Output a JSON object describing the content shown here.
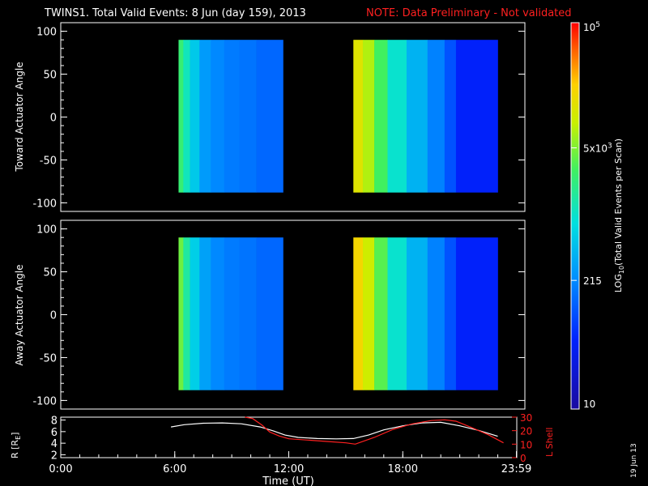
{
  "title": {
    "main": "TWINS1. Total Valid Events:  8 Jun (day 159), 2013",
    "note": "NOTE: Data Preliminary - Not validated"
  },
  "date_stamp": "19 Jun 13",
  "colors": {
    "background": "#000000",
    "axes": "#ffffff",
    "note_text": "#ff2020",
    "r_line": "#ffffff",
    "lshell_line": "#ff2020"
  },
  "chart_data": [
    {
      "type": "heatmap",
      "id": "toward",
      "ylabel": "Toward Actuator Angle",
      "xlim": [
        0,
        24
      ],
      "ylim": [
        -110,
        110
      ],
      "yticks": [
        100,
        50,
        0,
        -50,
        -100
      ],
      "ytick_labels": [
        "100",
        "50",
        "0",
        "-50",
        "-100"
      ],
      "value_units": "log10 events per scan",
      "blocks": [
        {
          "x_start": 6.2,
          "x_end": 11.7,
          "y_start": -88,
          "y_end": 90,
          "columns": [
            {
              "x0": 6.2,
              "x1": 6.45,
              "v": 0.6
            },
            {
              "x0": 6.45,
              "x1": 6.8,
              "v": 0.52
            },
            {
              "x0": 6.8,
              "x1": 7.3,
              "v": 0.44
            },
            {
              "x0": 7.3,
              "x1": 7.9,
              "v": 0.36
            },
            {
              "x0": 7.9,
              "x1": 8.6,
              "v": 0.33
            },
            {
              "x0": 8.6,
              "x1": 9.4,
              "v": 0.31
            },
            {
              "x0": 9.4,
              "x1": 10.3,
              "v": 0.3
            },
            {
              "x0": 10.3,
              "x1": 11.7,
              "v": 0.28
            }
          ]
        },
        {
          "x_start": 15.4,
          "x_end": 23.0,
          "y_start": -88,
          "y_end": 90,
          "columns": [
            {
              "x0": 15.4,
              "x1": 15.9,
              "v": 0.78
            },
            {
              "x0": 15.9,
              "x1": 16.5,
              "v": 0.72
            },
            {
              "x0": 16.5,
              "x1": 17.2,
              "v": 0.62
            },
            {
              "x0": 17.2,
              "x1": 18.2,
              "v": 0.5
            },
            {
              "x0": 18.2,
              "x1": 19.3,
              "v": 0.4
            },
            {
              "x0": 19.3,
              "x1": 20.2,
              "v": 0.32
            },
            {
              "x0": 20.2,
              "x1": 20.8,
              "v": 0.25
            },
            {
              "x0": 20.8,
              "x1": 23.0,
              "v": 0.17
            }
          ]
        }
      ]
    },
    {
      "type": "heatmap",
      "id": "away",
      "ylabel": "Away Actuator Angle",
      "xlim": [
        0,
        24
      ],
      "ylim": [
        -110,
        110
      ],
      "yticks": [
        100,
        50,
        0,
        -50,
        -100
      ],
      "ytick_labels": [
        "100",
        "50",
        "0",
        "-50",
        "-100"
      ],
      "value_units": "log10 events per scan",
      "blocks": [
        {
          "x_start": 6.2,
          "x_end": 11.7,
          "y_start": -88,
          "y_end": 90,
          "columns": [
            {
              "x0": 6.2,
              "x1": 6.45,
              "v": 0.66
            },
            {
              "x0": 6.45,
              "x1": 6.8,
              "v": 0.55
            },
            {
              "x0": 6.8,
              "x1": 7.3,
              "v": 0.45
            },
            {
              "x0": 7.3,
              "x1": 7.9,
              "v": 0.37
            },
            {
              "x0": 7.9,
              "x1": 8.6,
              "v": 0.33
            },
            {
              "x0": 8.6,
              "x1": 9.4,
              "v": 0.31
            },
            {
              "x0": 9.4,
              "x1": 10.3,
              "v": 0.3
            },
            {
              "x0": 10.3,
              "x1": 11.7,
              "v": 0.28
            }
          ]
        },
        {
          "x_start": 15.4,
          "x_end": 23.0,
          "y_start": -88,
          "y_end": 90,
          "columns": [
            {
              "x0": 15.4,
              "x1": 15.9,
              "v": 0.82
            },
            {
              "x0": 15.9,
              "x1": 16.5,
              "v": 0.75
            },
            {
              "x0": 16.5,
              "x1": 17.2,
              "v": 0.64
            },
            {
              "x0": 17.2,
              "x1": 18.2,
              "v": 0.5
            },
            {
              "x0": 18.2,
              "x1": 19.3,
              "v": 0.4
            },
            {
              "x0": 19.3,
              "x1": 20.2,
              "v": 0.32
            },
            {
              "x0": 20.2,
              "x1": 20.8,
              "v": 0.25
            },
            {
              "x0": 20.8,
              "x1": 23.0,
              "v": 0.17
            }
          ]
        }
      ]
    },
    {
      "type": "line",
      "id": "orbit",
      "xlabel": "Time (UT)",
      "xlim": [
        0,
        24
      ],
      "xticks": [
        0,
        6,
        12,
        18,
        23.98
      ],
      "xtick_labels": [
        "0:00",
        "6:00",
        "12:00",
        "18:00",
        "23:59"
      ],
      "left_axis": {
        "ylabel": "R [R",
        "ylabel_sub": "E",
        "ylabel_end": "]",
        "ylim": [
          1.5,
          8.5
        ],
        "yticks": [
          2,
          4,
          6,
          8
        ],
        "ytick_labels": [
          "2",
          "4",
          "6",
          "8"
        ]
      },
      "right_axis": {
        "ylabel": "L Shell",
        "ylim": [
          0,
          30
        ],
        "yticks": [
          0,
          10,
          20,
          30
        ],
        "ytick_labels": [
          "0",
          "10",
          "20",
          "30"
        ]
      },
      "series": [
        {
          "axis": "left",
          "color": "#ffffff",
          "x": [
            5.8,
            6.5,
            7.5,
            8.5,
            9.5,
            10.5,
            11.2,
            11.8,
            12.5,
            13.5,
            14.5,
            15.4,
            16.2,
            17.0,
            18.0,
            19.0,
            20.0,
            21.0,
            22.0,
            23.0
          ],
          "y": [
            6.8,
            7.2,
            7.45,
            7.5,
            7.35,
            6.8,
            6.1,
            5.4,
            5.0,
            4.8,
            4.75,
            4.8,
            5.4,
            6.3,
            7.0,
            7.5,
            7.6,
            7.0,
            6.2,
            5.2
          ]
        },
        {
          "axis": "right",
          "color": "#ff2020",
          "x": [
            9.7,
            10.1,
            10.6,
            11.0,
            11.5,
            12.0,
            13.0,
            14.0,
            15.0,
            15.5,
            16.5,
            17.5,
            18.5,
            19.5,
            20.2,
            20.8,
            21.5,
            22.5,
            23.3
          ],
          "y": [
            30,
            29,
            24,
            19,
            16,
            14,
            13,
            12,
            11,
            10,
            15,
            21,
            25,
            27.5,
            28,
            27,
            23,
            17,
            11
          ]
        }
      ]
    }
  ],
  "colorbar": {
    "label_prefix": "LOG",
    "label_sub": "10",
    "label_suffix": "(Total Valid  Events per Scan)",
    "ticks": [
      {
        "label": "10",
        "sup": "",
        "frac": 0.0
      },
      {
        "label": "215",
        "sup": "",
        "frac": 0.333
      },
      {
        "label": "5x10",
        "sup": "3",
        "frac": 0.676
      },
      {
        "label": "10",
        "sup": "5",
        "frac": 1.0
      }
    ]
  }
}
